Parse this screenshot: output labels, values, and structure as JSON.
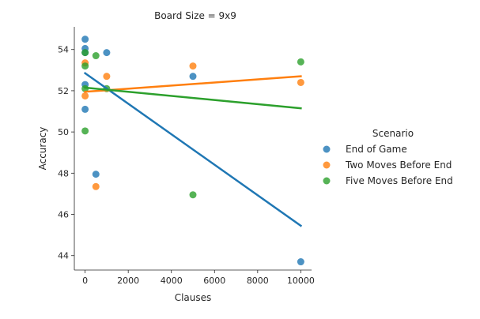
{
  "chart_data": {
    "type": "scatter",
    "title": "Board Size = 9x9",
    "xlabel": "Clauses",
    "ylabel": "Accuracy",
    "xlim": [
      -500,
      10500
    ],
    "ylim": [
      43.3,
      55.1
    ],
    "xticks": [
      0,
      2000,
      4000,
      6000,
      8000,
      10000
    ],
    "xtick_labels": [
      "0",
      "2000",
      "4000",
      "6000",
      "8000",
      "10000"
    ],
    "yticks": [
      44,
      46,
      48,
      50,
      52,
      54
    ],
    "ytick_labels": [
      "44",
      "46",
      "48",
      "50",
      "52",
      "54"
    ],
    "grid": false,
    "legend": {
      "title": "Scenario",
      "placement": "right"
    },
    "series": [
      {
        "name": "End of Game",
        "color": "#1f77b4",
        "points": [
          [
            0,
            54.5
          ],
          [
            0,
            54.05
          ],
          [
            0,
            53.85
          ],
          [
            0,
            52.3
          ],
          [
            0,
            51.1
          ],
          [
            500,
            47.95
          ],
          [
            1000,
            53.85
          ],
          [
            5000,
            52.7
          ],
          [
            10000,
            43.7
          ]
        ],
        "trend": [
          [
            0,
            52.85
          ],
          [
            10000,
            45.45
          ]
        ]
      },
      {
        "name": "Two Moves Before End",
        "color": "#ff7f0e",
        "points": [
          [
            0,
            53.35
          ],
          [
            0,
            51.75
          ],
          [
            500,
            47.35
          ],
          [
            1000,
            52.7
          ],
          [
            5000,
            53.2
          ],
          [
            10000,
            52.4
          ]
        ],
        "trend": [
          [
            0,
            51.95
          ],
          [
            10000,
            52.7
          ]
        ]
      },
      {
        "name": "Five Moves Before End",
        "color": "#2ca02c",
        "points": [
          [
            0,
            53.85
          ],
          [
            0,
            53.2
          ],
          [
            0,
            52.1
          ],
          [
            0,
            50.05
          ],
          [
            500,
            53.7
          ],
          [
            1000,
            52.1
          ],
          [
            5000,
            46.95
          ],
          [
            10000,
            53.4
          ]
        ],
        "trend": [
          [
            0,
            52.15
          ],
          [
            10000,
            51.15
          ]
        ]
      }
    ]
  }
}
